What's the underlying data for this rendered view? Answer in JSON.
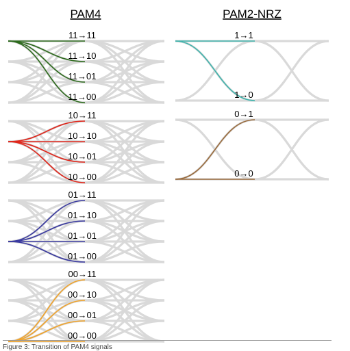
{
  "titles": {
    "pam4": "PAM4",
    "nrz": "PAM2-NRZ"
  },
  "colors": {
    "eye_background": "#d9d9d9",
    "pam4_from_11": "#2e6b1e",
    "pam4_from_10": "#e0261b",
    "pam4_from_01": "#3a3aa0",
    "pam4_from_00": "#f0a32a",
    "nrz_from_1": "#3fb3ac",
    "nrz_from_0": "#9a6b3c"
  },
  "pam4_panels": [
    {
      "from": "11",
      "transitions": [
        "11→11",
        "11→10",
        "11→01",
        "11→00"
      ]
    },
    {
      "from": "10",
      "transitions": [
        "10→11",
        "10→10",
        "10→01",
        "10→00"
      ]
    },
    {
      "from": "01",
      "transitions": [
        "01→11",
        "01→10",
        "01→01",
        "01→00"
      ]
    },
    {
      "from": "00",
      "transitions": [
        "00→11",
        "00→10",
        "00→01",
        "00→00"
      ]
    }
  ],
  "nrz_panels": [
    {
      "from": "1",
      "transitions": [
        "1→1",
        "1→0"
      ]
    },
    {
      "from": "0",
      "transitions": [
        "0→1",
        "0→0"
      ]
    }
  ],
  "caption": "Figure 3: Transition of PAM4 signals"
}
